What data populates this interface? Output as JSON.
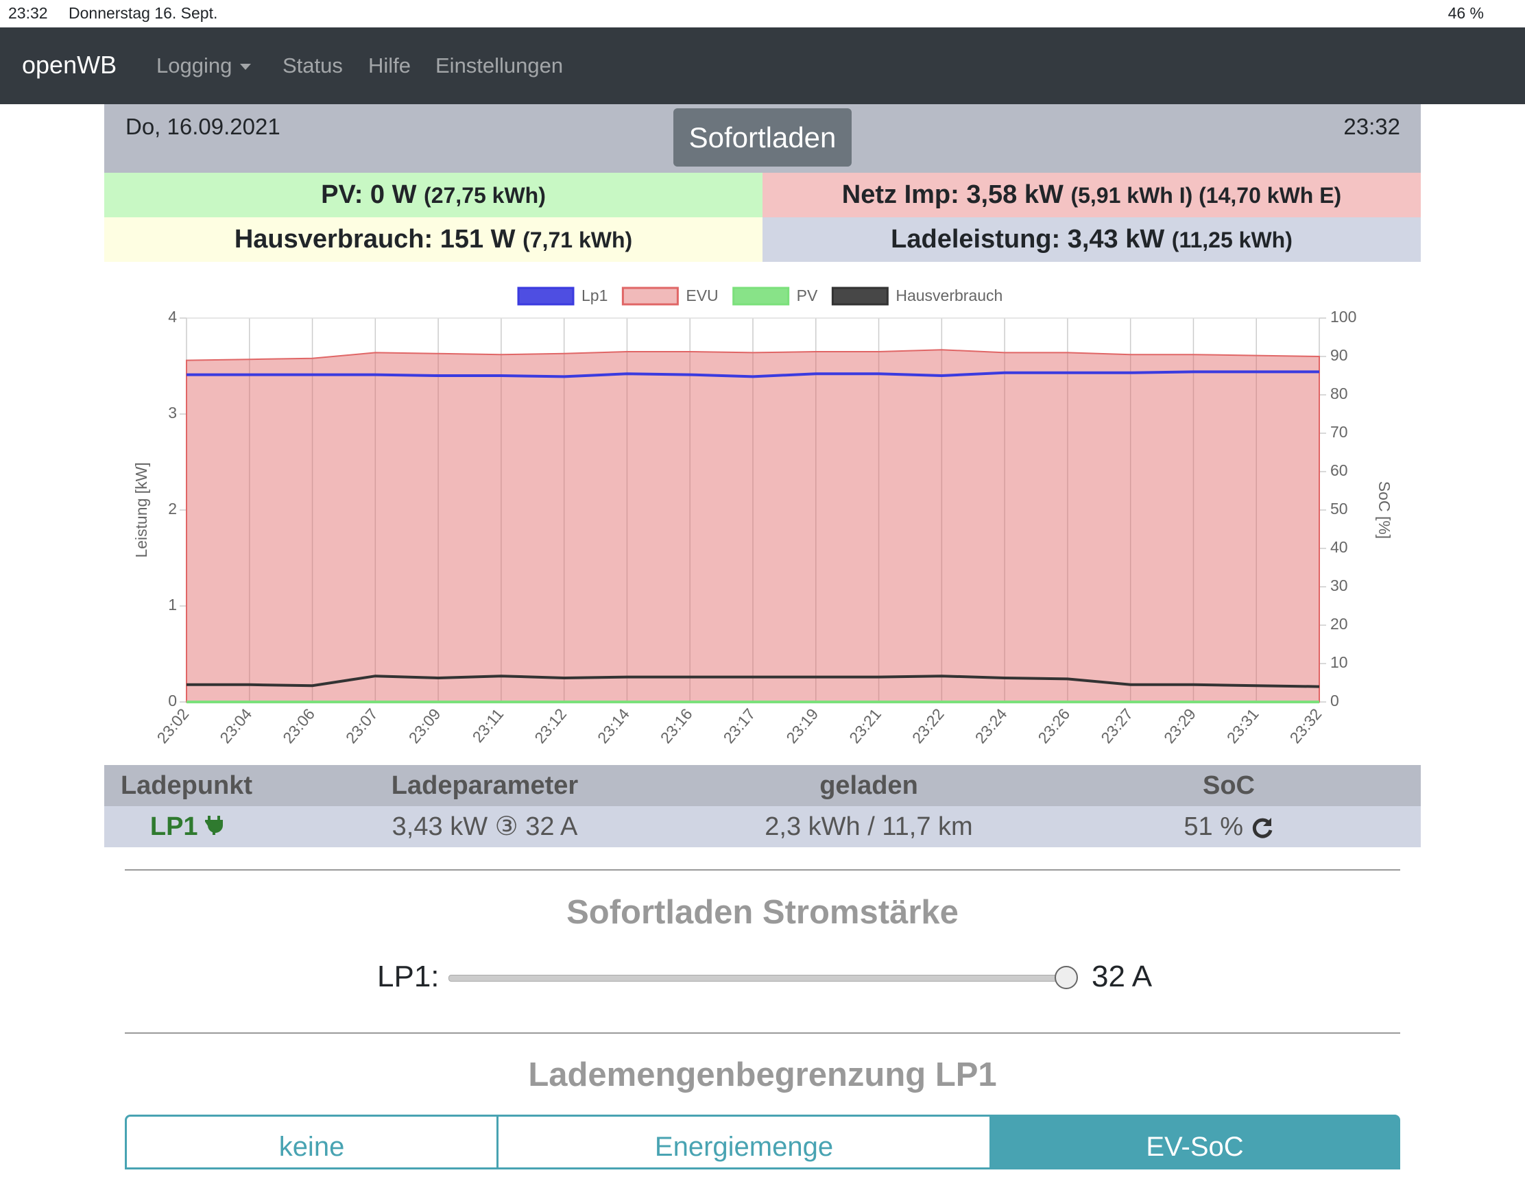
{
  "status_bar": {
    "time": "23:32",
    "date": "Donnerstag 16. Sept.",
    "battery": "46 %"
  },
  "nav": {
    "brand": "openWB",
    "items": [
      "Logging",
      "Status",
      "Hilfe",
      "Einstellungen"
    ]
  },
  "header": {
    "date": "Do, 16.09.2021",
    "mode": "Sofortladen",
    "time": "23:32"
  },
  "summary": {
    "pv": {
      "label": "PV: 0 W",
      "detail": "(27,75 kWh)"
    },
    "grid": {
      "label": "Netz Imp: 3,58 kW",
      "detail": "(5,91 kWh I) (14,70 kWh E)"
    },
    "house": {
      "label": "Hausverbrauch: 151 W",
      "detail": "(7,71 kWh)"
    },
    "charge": {
      "label": "Ladeleistung: 3,43 kW",
      "detail": "(11,25 kWh)"
    }
  },
  "chart_data": {
    "type": "line",
    "categories": [
      "23:02",
      "23:04",
      "23:06",
      "23:07",
      "23:09",
      "23:11",
      "23:12",
      "23:14",
      "23:16",
      "23:17",
      "23:19",
      "23:21",
      "23:22",
      "23:24",
      "23:26",
      "23:27",
      "23:29",
      "23:31",
      "23:32"
    ],
    "series": [
      {
        "name": "Lp1",
        "color": "#3b3bdf",
        "values": [
          3.41,
          3.41,
          3.41,
          3.41,
          3.4,
          3.4,
          3.39,
          3.42,
          3.41,
          3.39,
          3.42,
          3.42,
          3.4,
          3.43,
          3.43,
          3.43,
          3.44,
          3.44,
          3.44
        ]
      },
      {
        "name": "EVU",
        "color": "#e06666",
        "fill": true,
        "values": [
          3.56,
          3.57,
          3.58,
          3.64,
          3.63,
          3.62,
          3.63,
          3.65,
          3.65,
          3.64,
          3.65,
          3.65,
          3.67,
          3.64,
          3.64,
          3.62,
          3.62,
          3.61,
          3.6
        ]
      },
      {
        "name": "PV",
        "color": "#7be07b",
        "values": [
          0,
          0,
          0,
          0,
          0,
          0,
          0,
          0,
          0,
          0,
          0,
          0,
          0,
          0,
          0,
          0,
          0,
          0,
          0
        ]
      },
      {
        "name": "Hausverbrauch",
        "color": "#333333",
        "values": [
          0.18,
          0.18,
          0.17,
          0.27,
          0.25,
          0.27,
          0.25,
          0.26,
          0.26,
          0.26,
          0.26,
          0.26,
          0.27,
          0.25,
          0.24,
          0.18,
          0.18,
          0.17,
          0.16
        ]
      }
    ],
    "ylabel": "Leistung [kW]",
    "ylim": [
      0,
      4
    ],
    "yticks": [
      0,
      1,
      2,
      3,
      4
    ],
    "y2label": "SoC [%]",
    "y2lim": [
      0,
      100
    ],
    "y2ticks": [
      0,
      10,
      20,
      30,
      40,
      50,
      60,
      70,
      80,
      90,
      100
    ],
    "grid": true
  },
  "table": {
    "columns": [
      "Ladepunkt",
      "Ladeparameter",
      "geladen",
      "SoC"
    ],
    "rows": [
      [
        "LP1",
        "3,43 kW ③ 32 A",
        "2,3 kWh / 11,7 km",
        "51 %"
      ]
    ]
  },
  "current": {
    "title": "Sofortladen Stromstärke",
    "label": "LP1:",
    "value": "32 A"
  },
  "limit": {
    "title": "Lademengenbegrenzung LP1",
    "options": [
      "keine",
      "Energiemenge",
      "EV-SoC"
    ]
  }
}
